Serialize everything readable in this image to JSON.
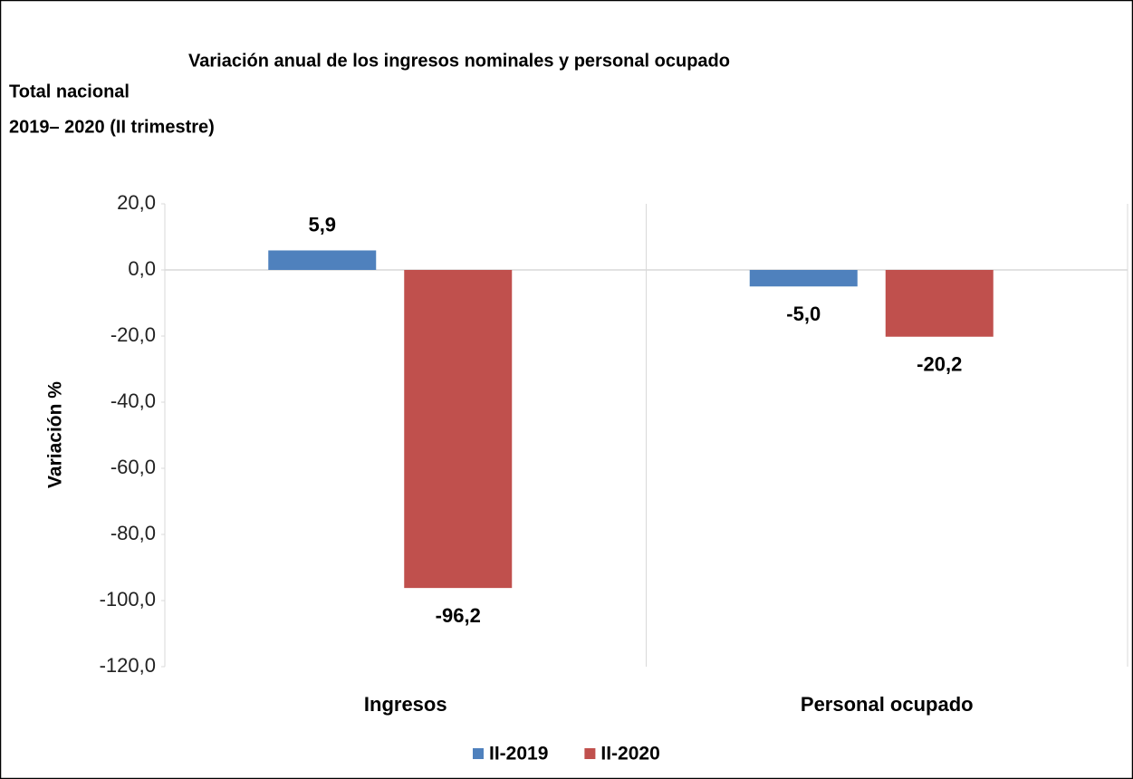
{
  "chart_data": {
    "type": "bar",
    "title": "Variación anual de los ingresos nominales y personal ocupado",
    "subtitle": [
      "Total nacional",
      "2019– 2020 (II trimestre)"
    ],
    "y_label": "Variación %",
    "categories": [
      "Ingresos",
      "Personal ocupado"
    ],
    "series": [
      {
        "name": "II-2019",
        "color": "#4f81bd",
        "values": [
          5.9,
          -5.0
        ],
        "value_labels": [
          "5,9",
          "-5,0"
        ]
      },
      {
        "name": "II-2020",
        "color": "#c0504d",
        "values": [
          -96.2,
          -20.2
        ],
        "value_labels": [
          "-96,2",
          "-20,2"
        ]
      }
    ],
    "ylim": [
      -120,
      20
    ],
    "yticks": [
      {
        "value": 20,
        "label": "20,0"
      },
      {
        "value": 0,
        "label": "0,0"
      },
      {
        "value": -20,
        "label": "-20,0"
      },
      {
        "value": -40,
        "label": "-40,0"
      },
      {
        "value": -60,
        "label": "-60,0"
      },
      {
        "value": -80,
        "label": "-80,0"
      },
      {
        "value": -100,
        "label": "-100,0"
      },
      {
        "value": -120,
        "label": "-120,0"
      }
    ],
    "legend": "bottom"
  }
}
